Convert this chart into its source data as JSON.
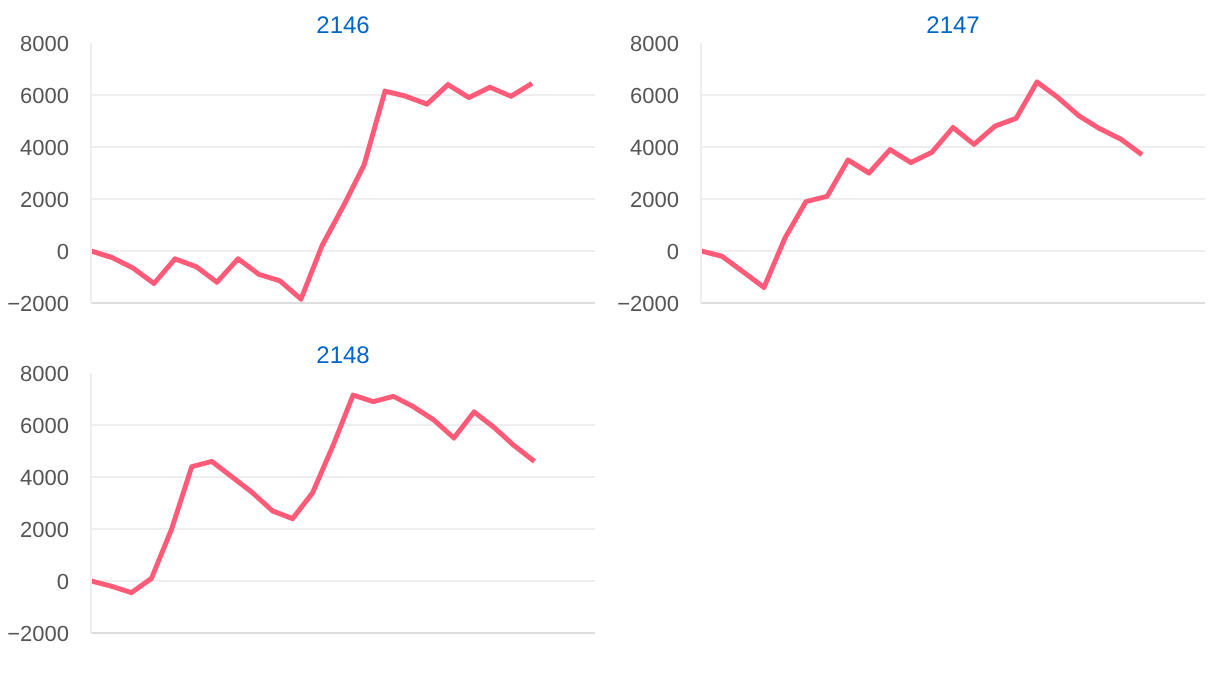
{
  "chart_data": [
    {
      "type": "line",
      "title": "2146",
      "categories": [
        null,
        null,
        null,
        null,
        null,
        null,
        null,
        null,
        null,
        null,
        null,
        null,
        null,
        null,
        null,
        null,
        null,
        null,
        null,
        null,
        null,
        null,
        null,
        null,
        null
      ],
      "series": [
        {
          "color": "#ff5a78",
          "values": [
            0,
            -250,
            -650,
            -1250,
            -300,
            -600,
            -1200,
            -300,
            -900,
            -1150,
            -1850,
            200,
            1700,
            3300,
            6150,
            5950,
            5650,
            6400,
            5900,
            6300,
            5950,
            6450,
            null,
            null,
            null
          ]
        }
      ],
      "ylim": [
        -2000,
        8000
      ],
      "yticks": [
        -2000,
        0,
        2000,
        4000,
        6000,
        8000
      ],
      "grid": "y",
      "tick_labels": "y",
      "marker": "none",
      "line_style": "solid"
    },
    {
      "type": "line",
      "title": "2147",
      "categories": [
        null,
        null,
        null,
        null,
        null,
        null,
        null,
        null,
        null,
        null,
        null,
        null,
        null,
        null,
        null,
        null,
        null,
        null,
        null,
        null,
        null,
        null,
        null,
        null,
        null
      ],
      "series": [
        {
          "color": "#ff5a78",
          "values": [
            0,
            -200,
            -800,
            -1400,
            500,
            1900,
            2100,
            3500,
            3000,
            3900,
            3400,
            3800,
            4750,
            4100,
            4800,
            5100,
            6500,
            5900,
            5200,
            4700,
            4300,
            3700,
            null,
            null,
            null
          ]
        }
      ],
      "ylim": [
        -2000,
        8000
      ],
      "yticks": [
        -2000,
        0,
        2000,
        4000,
        6000,
        8000
      ],
      "grid": "y",
      "tick_labels": "y",
      "marker": "none",
      "line_style": "solid"
    },
    {
      "type": "line",
      "title": "2148",
      "categories": [
        null,
        null,
        null,
        null,
        null,
        null,
        null,
        null,
        null,
        null,
        null,
        null,
        null,
        null,
        null,
        null,
        null,
        null,
        null,
        null,
        null,
        null,
        null,
        null,
        null,
        null
      ],
      "series": [
        {
          "color": "#ff5a78",
          "values": [
            0,
            -200,
            -450,
            100,
            2000,
            4400,
            4600,
            4000,
            3400,
            2700,
            2400,
            3400,
            5200,
            7150,
            6900,
            7100,
            6700,
            6200,
            5500,
            6500,
            5900,
            5200,
            4600,
            null,
            null,
            null
          ]
        }
      ],
      "ylim": [
        -2000,
        8000
      ],
      "yticks": [
        -2000,
        0,
        2000,
        4000,
        6000,
        8000
      ],
      "grid": "y",
      "tick_labels": "y",
      "marker": "none",
      "line_style": "solid"
    }
  ]
}
